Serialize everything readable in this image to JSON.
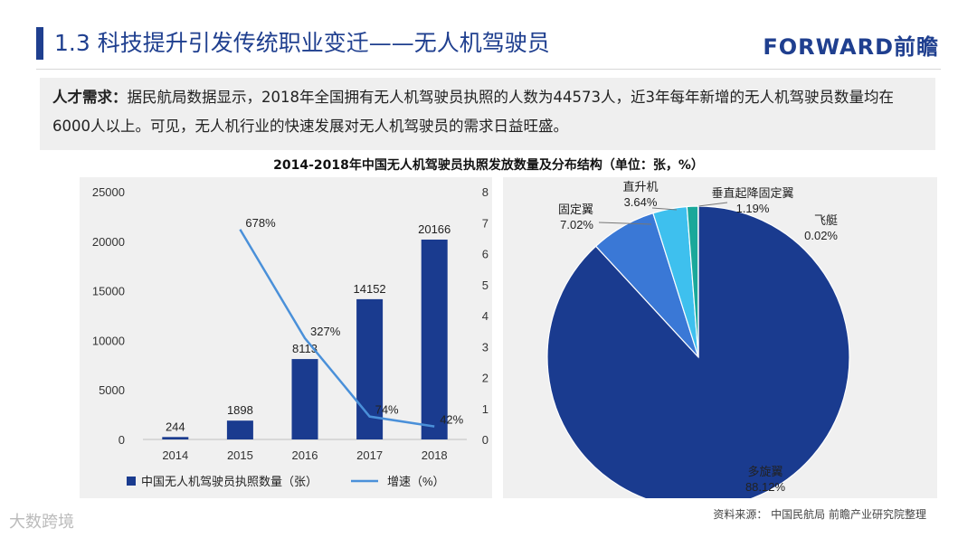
{
  "header": {
    "title": "1.3 科技提升引发传统职业变迁——无人机驾驶员",
    "logo": "FORWARD前瞻"
  },
  "description": {
    "keyword": "人才需求：",
    "text": "据民航局数据显示，2018年全国拥有无人机驾驶员执照的人数为44573人，近3年每年新增的无人机驾驶员数量均在6000人以上。可见，无人机行业的快速发展对无人机驾驶员的需求日益旺盛。"
  },
  "chart_title": "2014-2018年中国无人机驾驶员执照发放数量及分布结构（单位：张，%）",
  "chart_data": [
    {
      "type": "bar",
      "categories": [
        "2014",
        "2015",
        "2016",
        "2017",
        "2018"
      ],
      "series": [
        {
          "name": "中国无人机驾驶员执照数量（张）",
          "type": "bar",
          "axis": "left",
          "values": [
            244,
            1898,
            8113,
            14152,
            20166
          ],
          "labels": [
            "244",
            "1898",
            "8113",
            "14152",
            "20166"
          ]
        },
        {
          "name": "增速（%）",
          "type": "line",
          "axis": "right",
          "values": [
            null,
            6.78,
            3.27,
            0.74,
            0.42
          ],
          "labels": [
            "",
            "678%",
            "327%",
            "74%",
            "42%"
          ]
        }
      ],
      "y_left": {
        "min": 0,
        "max": 25000,
        "ticks": [
          "0",
          "5000",
          "10000",
          "15000",
          "20000",
          "25000"
        ]
      },
      "y_right": {
        "min": 0,
        "max": 8,
        "ticks": [
          "0",
          "1",
          "2",
          "3",
          "4",
          "5",
          "6",
          "7",
          "8"
        ]
      },
      "legend_position": "bottom"
    },
    {
      "type": "pie",
      "slices": [
        {
          "label": "多旋翼",
          "value": 88.12,
          "text": "88.12%",
          "color": "#1a3b8f"
        },
        {
          "label": "固定翼",
          "value": 7.02,
          "text": "7.02%",
          "color": "#3a78d6"
        },
        {
          "label": "直升机",
          "value": 3.64,
          "text": "3.64%",
          "color": "#3ec0ee"
        },
        {
          "label": "垂直起降固定翼",
          "value": 1.19,
          "text": "1.19%",
          "color": "#1aa89a"
        },
        {
          "label": "飞艇",
          "value": 0.02,
          "text": "0.02%",
          "color": "#9bd6f0"
        }
      ]
    }
  ],
  "colors": {
    "bar": "#1a3b8f",
    "line": "#4a90d9",
    "accent": "#1f3f8f"
  },
  "footer": {
    "source": "资料来源：  中国民航局  前瞻产业研究院整理",
    "watermark": "大数跨境"
  }
}
